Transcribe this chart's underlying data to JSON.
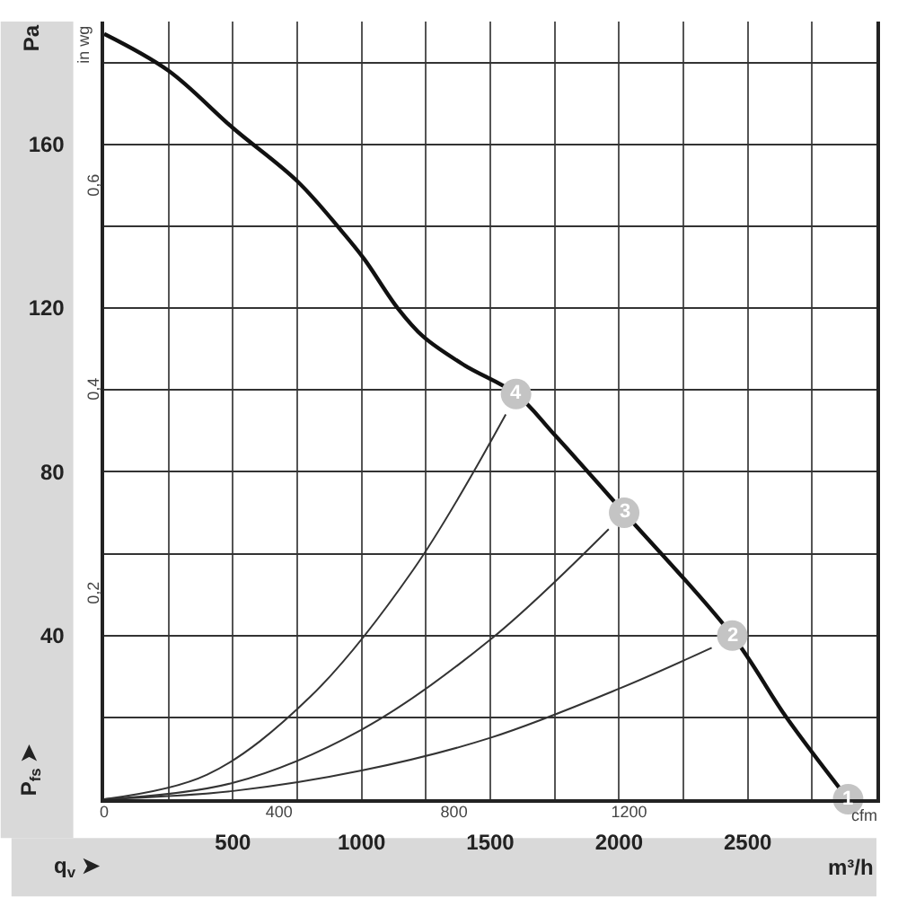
{
  "chart_data": {
    "type": "line",
    "xlabel": "q$_{v}$ ➤",
    "ylabel": "P$_{fs}$ ➤",
    "y2label": "in wg",
    "x2label": "cfm",
    "xlim": [
      0,
      3000
    ],
    "xticks": [
      {
        "value": 0,
        "label": null
      },
      {
        "value": 250,
        "label": null
      },
      500,
      {
        "value": 750,
        "label": null
      },
      1000,
      {
        "value": 1250,
        "label": null
      },
      1500,
      {
        "value": 1750,
        "label": null
      },
      2000,
      {
        "value": 2250,
        "label": null
      },
      2500,
      {
        "value": 2750,
        "label": null
      },
      {
        "value": 3000,
        "label": null
      }
    ],
    "x2lim": [
      0,
      1765.7
    ],
    "x2ticks": [
      0,
      400,
      800,
      1200
    ],
    "ylim": [
      0,
      190
    ],
    "yticks": [
      {
        "value": 0,
        "label": null
      },
      {
        "value": 20,
        "label": null
      },
      40,
      {
        "value": 60,
        "label": null
      },
      80,
      {
        "value": 100,
        "label": null
      },
      120,
      {
        "value": 140,
        "label": null
      },
      160,
      {
        "value": 180,
        "label": null
      }
    ],
    "y2lim": [
      0,
      0.763
    ],
    "y2ticks": [
      {
        "value": 0.2,
        "label": "0,2"
      },
      {
        "value": 0.4,
        "label": "0,4"
      },
      {
        "value": 0.6,
        "label": "0,6"
      }
    ],
    "grid": true,
    "marker": "none",
    "line_style": "solid",
    "series": [
      {
        "color": "#111111",
        "x": [
          0,
          250,
          500,
          750,
          920,
          1010,
          1140,
          1240,
          1400,
          1600,
          1750,
          2020,
          2440,
          2650,
          2890
        ],
        "values": [
          187,
          178,
          164,
          151,
          139,
          132,
          120,
          113,
          106,
          99,
          89,
          70,
          40,
          20,
          0
        ]
      },
      {
        "color": "#333333",
        "x": [
          0,
          400,
          800,
          1200,
          1560
        ],
        "values": [
          0,
          6,
          25,
          56,
          94
        ]
      },
      {
        "color": "#333333",
        "x": [
          0,
          500,
          1000,
          1500,
          1960
        ],
        "values": [
          0,
          4,
          17,
          39,
          66
        ]
      },
      {
        "color": "#333333",
        "x": [
          0,
          500,
          1000,
          1500,
          2000,
          2360
        ],
        "values": [
          0,
          2,
          7,
          15,
          27,
          37
        ]
      }
    ],
    "annotations": [
      "Pa",
      "m³/h",
      {
        "text": "1",
        "x": 2890,
        "y": 0
      },
      {
        "text": "2",
        "x": 2440,
        "y": 40
      },
      {
        "text": "3",
        "x": 2020,
        "y": 70
      },
      {
        "text": "4",
        "x": 1600,
        "y": 99
      }
    ]
  }
}
